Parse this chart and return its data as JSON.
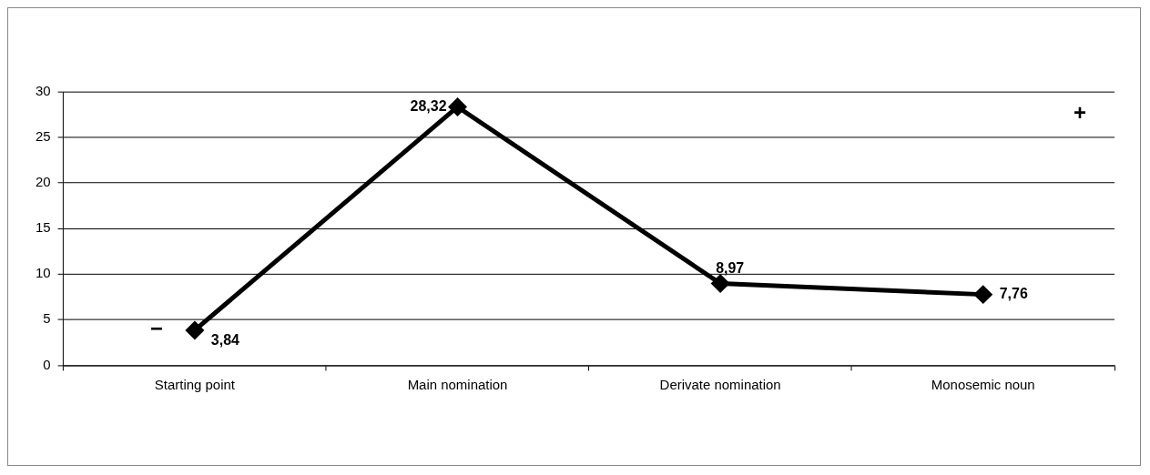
{
  "chart_data": {
    "type": "line",
    "categories": [
      "Starting point",
      "Main nomination",
      "Derivate nomination",
      "Monosemic noun"
    ],
    "series": [
      {
        "color": "#000000",
        "values": [
          3.84,
          28.32,
          8.97,
          7.76
        ],
        "value_labels": [
          "3,84",
          "28,32",
          "8,97",
          "7,76"
        ]
      }
    ],
    "ylim": [
      0,
      30
    ],
    "yticks": [
      0,
      5,
      10,
      15,
      20,
      25,
      30
    ],
    "grid": "y",
    "legend": false,
    "marker": "diamond",
    "line_style": "solid",
    "annotations": [
      "−",
      "+"
    ]
  }
}
